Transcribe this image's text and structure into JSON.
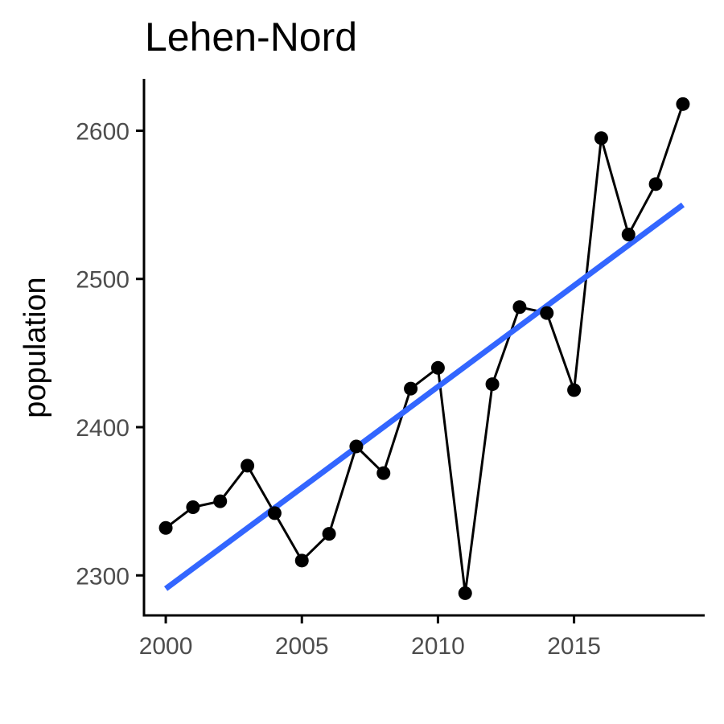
{
  "chart_data": {
    "type": "line",
    "title": "Lehen-Nord",
    "xlabel": "",
    "ylabel": "population",
    "xlim": [
      1999.2,
      2019.8
    ],
    "ylim": [
      2273,
      2635
    ],
    "x_ticks": [
      2000,
      2005,
      2010,
      2015
    ],
    "y_ticks": [
      2300,
      2400,
      2500,
      2600
    ],
    "grid": false,
    "legend": "none",
    "series": [
      {
        "x": [
          2000,
          2001,
          2002,
          2003,
          2004,
          2005,
          2006,
          2007,
          2008,
          2009,
          2010,
          2011,
          2012,
          2013,
          2014,
          2015,
          2016,
          2017,
          2018,
          2019
        ],
        "values": [
          2332,
          2346,
          2350,
          2374,
          2342,
          2310,
          2328,
          2387,
          2369,
          2426,
          2440,
          2288,
          2429,
          2481,
          2477,
          2425,
          2595,
          2530,
          2564,
          2618
        ],
        "color": "#000000"
      }
    ],
    "trend": {
      "method": "linear",
      "x": [
        2000,
        2019
      ],
      "values": [
        2291,
        2550
      ],
      "color": "#3366ff"
    }
  }
}
